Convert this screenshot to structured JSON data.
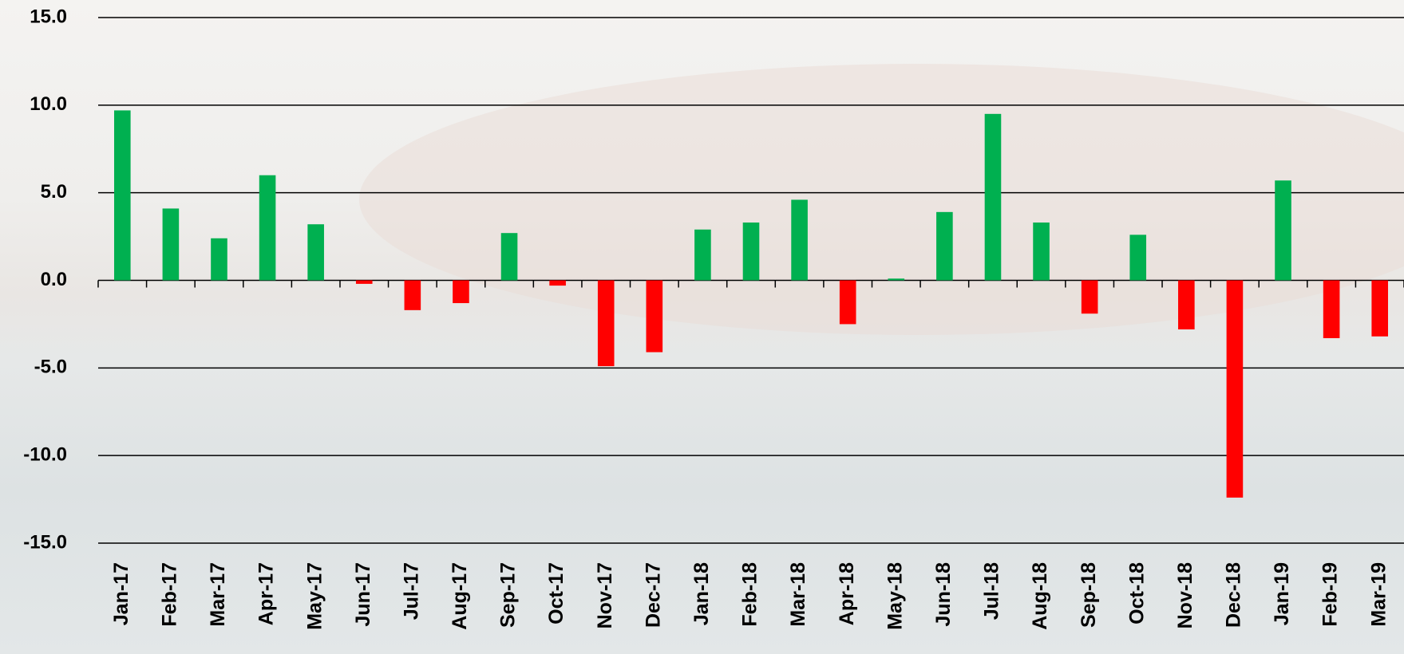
{
  "chart_data": {
    "type": "bar",
    "categories": [
      "Jan-17",
      "Feb-17",
      "Mar-17",
      "Apr-17",
      "May-17",
      "Jun-17",
      "Jul-17",
      "Aug-17",
      "Sep-17",
      "Oct-17",
      "Nov-17",
      "Dec-17",
      "Jan-18",
      "Feb-18",
      "Mar-18",
      "Apr-18",
      "May-18",
      "Jun-18",
      "Jul-18",
      "Aug-18",
      "Sep-18",
      "Oct-18",
      "Nov-18",
      "Dec-18",
      "Jan-19",
      "Feb-19",
      "Mar-19"
    ],
    "values": [
      9.7,
      4.1,
      2.4,
      6.0,
      3.2,
      -0.2,
      -1.7,
      -1.3,
      2.7,
      -0.3,
      -4.9,
      -4.1,
      2.9,
      3.3,
      4.6,
      -2.5,
      0.1,
      3.9,
      9.5,
      3.3,
      -1.9,
      2.6,
      -2.8,
      -12.4,
      5.7,
      -3.3,
      -3.2
    ],
    "positive_color": "#00b050",
    "negative_color": "#ff0000",
    "ylim": [
      -15,
      15
    ],
    "yticks": [
      {
        "value": -15,
        "label": "-15.0"
      },
      {
        "value": -10,
        "label": "-10.0"
      },
      {
        "value": -5,
        "label": "-5.0"
      },
      {
        "value": 0,
        "label": "0.0"
      },
      {
        "value": 5,
        "label": "5.0"
      },
      {
        "value": 10,
        "label": "10.0"
      },
      {
        "value": 15,
        "label": "15.0"
      }
    ],
    "grid": true
  }
}
